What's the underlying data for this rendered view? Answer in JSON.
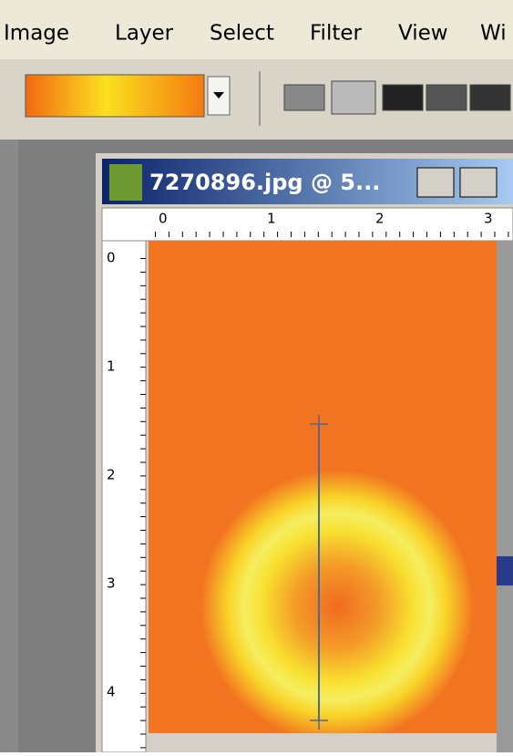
{
  "menu": [
    "Image",
    "Layer",
    "Select",
    "Filter",
    "View",
    "Wi"
  ],
  "document": {
    "title": "7270896.jpg @ 5...",
    "ruler_x": [
      "0",
      "1",
      "2",
      "3"
    ],
    "ruler_y": [
      "0",
      "1",
      "2",
      "3",
      "4"
    ]
  }
}
